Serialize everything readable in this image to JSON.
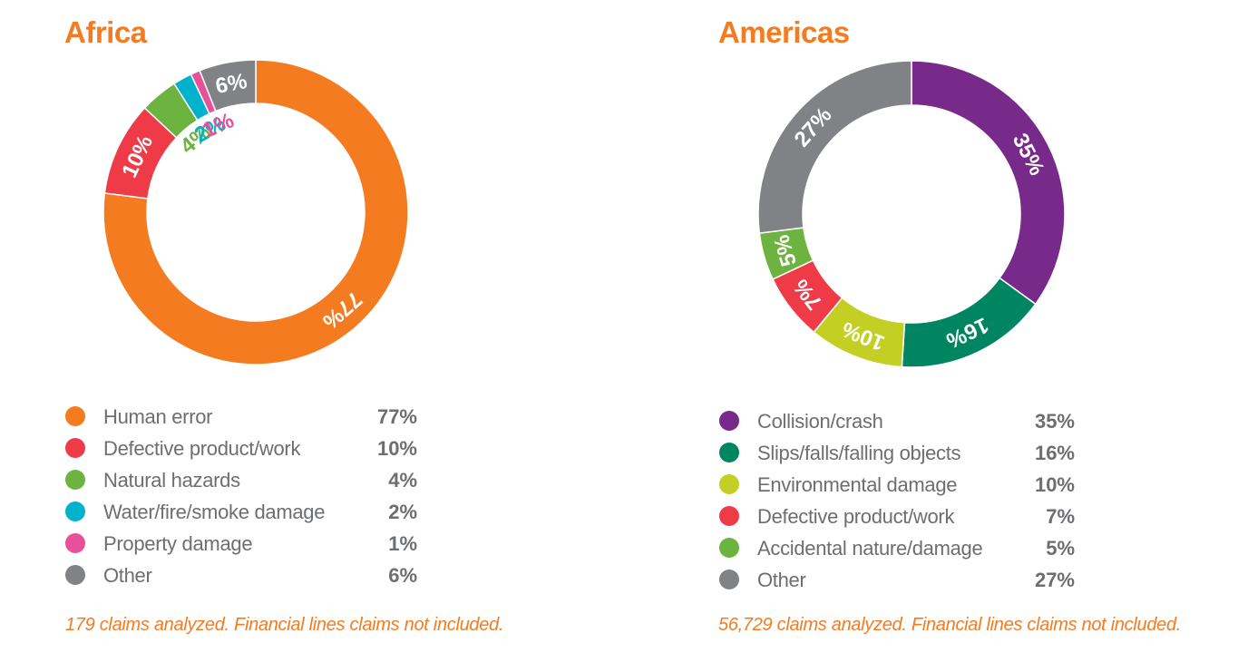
{
  "chart_data": [
    {
      "type": "pie",
      "variant": "donut",
      "title": "Africa",
      "categories": [
        "Human error",
        "Defective product/work",
        "Natural hazards",
        "Water/fire/smoke damage",
        "Property damage",
        "Other"
      ],
      "values": [
        77,
        10,
        4,
        2,
        1,
        6
      ],
      "value_labels": [
        "77%",
        "10%",
        "4%",
        "2%",
        "1%",
        "6%"
      ],
      "colors": [
        "#f47b20",
        "#ef3a47",
        "#6db33f",
        "#00b2cb",
        "#e8509b",
        "#808285"
      ],
      "label_outside": [
        false,
        false,
        true,
        true,
        true,
        false
      ],
      "start": "top",
      "direction": "clockwise",
      "legend_position": "bottom",
      "note": "179 claims analyzed. Financial lines claims not included."
    },
    {
      "type": "pie",
      "variant": "donut",
      "title": "Americas",
      "categories": [
        "Collision/crash",
        "Slips/falls/falling objects",
        "Environmental damage",
        "Defective product/work",
        "Accidental nature/damage",
        "Other"
      ],
      "values": [
        35,
        16,
        10,
        7,
        5,
        27
      ],
      "value_labels": [
        "35%",
        "16%",
        "10%",
        "7%",
        "5%",
        "27%"
      ],
      "colors": [
        "#782a8b",
        "#008562",
        "#c4cf23",
        "#ef3a47",
        "#6db33f",
        "#808285"
      ],
      "label_outside": [
        false,
        false,
        false,
        false,
        false,
        false
      ],
      "start": "top",
      "direction": "clockwise",
      "legend_position": "bottom",
      "note": "56,729 claims analyzed. Financial lines claims not included."
    }
  ]
}
